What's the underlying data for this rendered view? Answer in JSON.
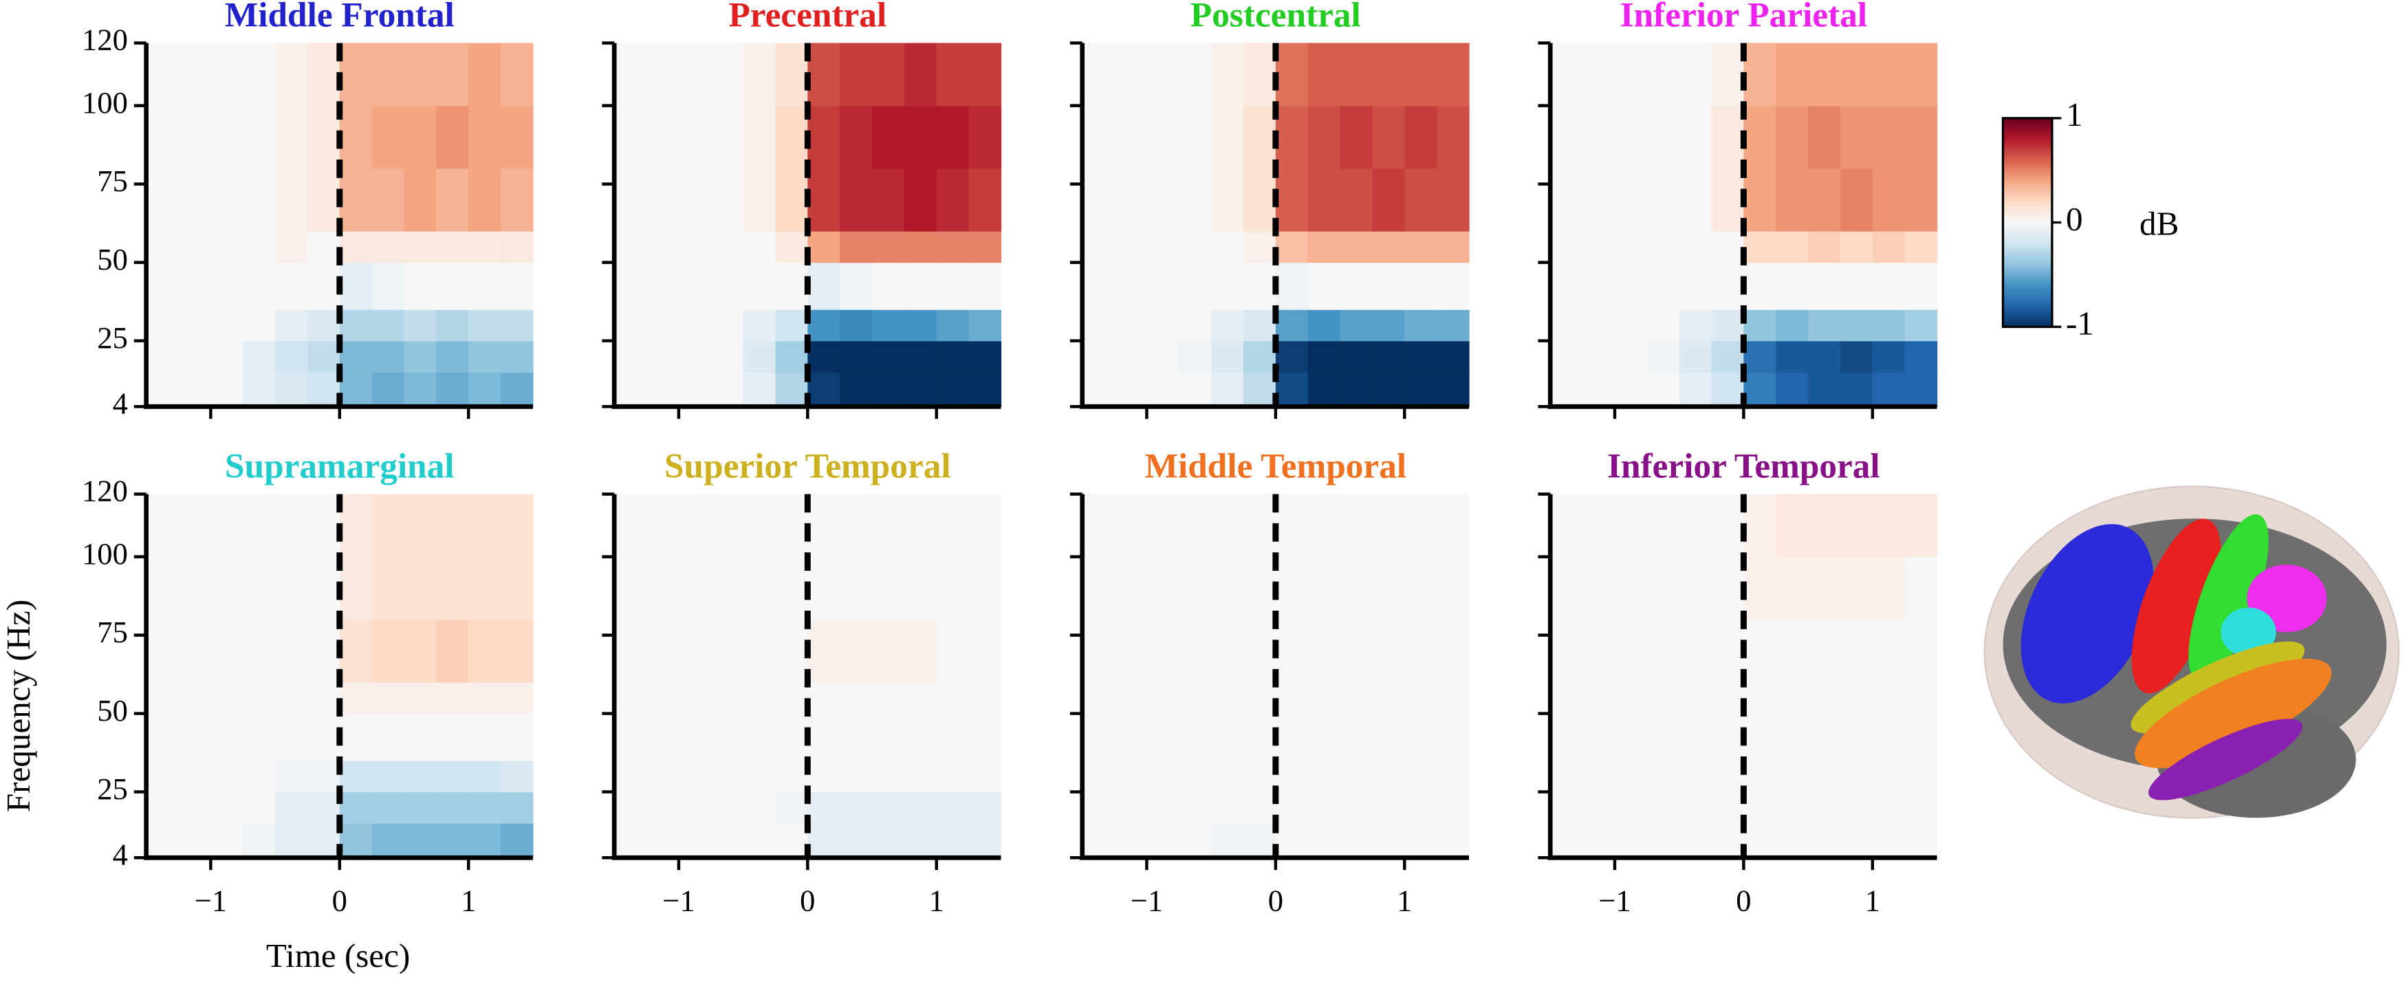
{
  "xlabel": "Time (sec)",
  "ylabel": "Frequency (Hz)",
  "colorbar": {
    "label": "dB",
    "lim": [
      -1,
      1
    ],
    "ticks": [
      1,
      0,
      -1
    ],
    "cmap": "RdBu_r"
  },
  "chart_data": [
    {
      "type": "heatmap",
      "title": "Middle Frontal",
      "title_color": "#2222cc",
      "vline": 0,
      "x": [
        -1.5,
        -1.25,
        -1,
        -0.75,
        -0.5,
        -0.25,
        0,
        0.25,
        0.5,
        0.75,
        1,
        1.25,
        1.5
      ],
      "y": [
        4,
        15,
        25,
        35,
        50,
        60,
        80,
        100,
        120
      ],
      "xlim": [
        -1.5,
        1.5
      ],
      "ylim": [
        4,
        120
      ],
      "xticks": [
        -1,
        0,
        1
      ],
      "yticks": [
        4,
        25,
        50,
        75,
        100,
        120
      ],
      "values": [
        [
          0,
          0,
          0,
          -0.1,
          -0.15,
          -0.2,
          -0.45,
          -0.5,
          -0.45,
          -0.5,
          -0.45,
          -0.5
        ],
        [
          0,
          0,
          0,
          -0.1,
          -0.2,
          -0.25,
          -0.45,
          -0.45,
          -0.4,
          -0.45,
          -0.4,
          -0.4
        ],
        [
          0,
          0,
          0,
          0,
          -0.1,
          -0.15,
          -0.3,
          -0.3,
          -0.25,
          -0.3,
          -0.25,
          -0.25
        ],
        [
          0,
          0,
          0,
          0,
          0,
          0,
          -0.1,
          -0.05,
          0,
          0,
          0,
          0
        ],
        [
          0,
          0,
          0,
          0,
          0.05,
          0,
          0.1,
          0.1,
          0.1,
          0.1,
          0.1,
          0.1
        ],
        [
          0,
          0,
          0,
          0,
          0.05,
          0.1,
          0.35,
          0.35,
          0.4,
          0.35,
          0.4,
          0.35
        ],
        [
          0,
          0,
          0,
          0,
          0.05,
          0.1,
          0.35,
          0.4,
          0.4,
          0.45,
          0.4,
          0.4
        ],
        [
          0,
          0,
          0,
          0,
          0.05,
          0.1,
          0.35,
          0.35,
          0.35,
          0.35,
          0.4,
          0.35
        ]
      ]
    },
    {
      "type": "heatmap",
      "title": "Precentral",
      "title_color": "#e02020",
      "vline": 0,
      "x": [
        -1.5,
        -1.25,
        -1,
        -0.75,
        -0.5,
        -0.25,
        0,
        0.25,
        0.5,
        0.75,
        1,
        1.25,
        1.5
      ],
      "y": [
        4,
        15,
        25,
        35,
        50,
        60,
        80,
        100,
        120
      ],
      "xlim": [
        -1.5,
        1.5
      ],
      "ylim": [
        4,
        120
      ],
      "xticks": [
        -1,
        0,
        1
      ],
      "yticks": [
        4,
        25,
        50,
        75,
        100,
        120
      ],
      "values": [
        [
          0,
          0,
          0,
          0,
          -0.1,
          -0.3,
          -0.95,
          -1,
          -1,
          -1,
          -1,
          -1
        ],
        [
          0,
          0,
          0,
          0,
          -0.15,
          -0.35,
          -1,
          -1,
          -1,
          -1,
          -1,
          -1
        ],
        [
          0,
          0,
          0,
          0,
          -0.1,
          -0.2,
          -0.6,
          -0.65,
          -0.6,
          -0.6,
          -0.55,
          -0.5
        ],
        [
          0,
          0,
          0,
          0,
          0,
          0,
          -0.1,
          -0.05,
          0,
          0,
          0,
          0
        ],
        [
          0,
          0,
          0,
          0,
          0,
          0.1,
          0.4,
          0.5,
          0.5,
          0.5,
          0.5,
          0.5
        ],
        [
          0,
          0,
          0,
          0,
          0.05,
          0.2,
          0.7,
          0.75,
          0.75,
          0.8,
          0.75,
          0.7
        ],
        [
          0,
          0,
          0,
          0,
          0.05,
          0.2,
          0.7,
          0.75,
          0.8,
          0.8,
          0.8,
          0.75
        ],
        [
          0,
          0,
          0,
          0,
          0.05,
          0.15,
          0.65,
          0.7,
          0.7,
          0.75,
          0.7,
          0.7
        ]
      ]
    },
    {
      "type": "heatmap",
      "title": "Postcentral",
      "title_color": "#22cc22",
      "vline": 0,
      "x": [
        -1.5,
        -1.25,
        -1,
        -0.75,
        -0.5,
        -0.25,
        0,
        0.25,
        0.5,
        0.75,
        1,
        1.25,
        1.5
      ],
      "y": [
        4,
        15,
        25,
        35,
        50,
        60,
        80,
        100,
        120
      ],
      "xlim": [
        -1.5,
        1.5
      ],
      "ylim": [
        4,
        120
      ],
      "xticks": [
        -1,
        0,
        1
      ],
      "yticks": [
        4,
        25,
        50,
        75,
        100,
        120
      ],
      "values": [
        [
          0,
          0,
          0,
          0,
          -0.1,
          -0.25,
          -0.9,
          -1,
          -1,
          -1,
          -1,
          -1
        ],
        [
          0,
          0,
          0,
          -0.05,
          -0.15,
          -0.3,
          -0.95,
          -1,
          -1,
          -1,
          -1,
          -1
        ],
        [
          0,
          0,
          0,
          0,
          -0.1,
          -0.15,
          -0.55,
          -0.6,
          -0.55,
          -0.55,
          -0.5,
          -0.5
        ],
        [
          0,
          0,
          0,
          0,
          0,
          0,
          -0.05,
          0,
          0,
          0,
          0,
          0
        ],
        [
          0,
          0,
          0,
          0,
          0,
          0.05,
          0.3,
          0.35,
          0.35,
          0.35,
          0.35,
          0.35
        ],
        [
          0,
          0,
          0,
          0,
          0.05,
          0.15,
          0.6,
          0.65,
          0.65,
          0.7,
          0.65,
          0.65
        ],
        [
          0,
          0,
          0,
          0,
          0.05,
          0.15,
          0.6,
          0.65,
          0.7,
          0.65,
          0.7,
          0.65
        ],
        [
          0,
          0,
          0,
          0,
          0.05,
          0.1,
          0.55,
          0.6,
          0.6,
          0.6,
          0.6,
          0.6
        ]
      ]
    },
    {
      "type": "heatmap",
      "title": "Inferior Parietal",
      "title_color": "#ee22ee",
      "vline": 0,
      "x": [
        -1.5,
        -1.25,
        -1,
        -0.75,
        -0.5,
        -0.25,
        0,
        0.25,
        0.5,
        0.75,
        1,
        1.25,
        1.5
      ],
      "y": [
        4,
        15,
        25,
        35,
        50,
        60,
        80,
        100,
        120
      ],
      "xlim": [
        -1.5,
        1.5
      ],
      "ylim": [
        4,
        120
      ],
      "xticks": [
        -1,
        0,
        1
      ],
      "yticks": [
        4,
        25,
        50,
        75,
        100,
        120
      ],
      "values": [
        [
          0,
          0,
          0,
          0,
          -0.1,
          -0.2,
          -0.7,
          -0.8,
          -0.85,
          -0.85,
          -0.8,
          -0.8
        ],
        [
          0,
          0,
          0,
          -0.05,
          -0.15,
          -0.25,
          -0.75,
          -0.85,
          -0.85,
          -0.9,
          -0.85,
          -0.8
        ],
        [
          0,
          0,
          0,
          0,
          -0.1,
          -0.15,
          -0.4,
          -0.45,
          -0.4,
          -0.4,
          -0.4,
          -0.35
        ],
        [
          0,
          0,
          0,
          0,
          0,
          0,
          0,
          0,
          0,
          0,
          0,
          0
        ],
        [
          0,
          0,
          0,
          0,
          0,
          0,
          0.2,
          0.2,
          0.25,
          0.2,
          0.25,
          0.2
        ],
        [
          0,
          0,
          0,
          0,
          0,
          0.1,
          0.4,
          0.45,
          0.45,
          0.5,
          0.45,
          0.45
        ],
        [
          0,
          0,
          0,
          0,
          0,
          0.1,
          0.4,
          0.45,
          0.5,
          0.45,
          0.45,
          0.45
        ],
        [
          0,
          0,
          0,
          0,
          0,
          0.05,
          0.35,
          0.4,
          0.4,
          0.4,
          0.4,
          0.4
        ]
      ]
    },
    {
      "type": "heatmap",
      "title": "Supramarginal",
      "title_color": "#22cccc",
      "vline": 0,
      "x": [
        -1.5,
        -1.25,
        -1,
        -0.75,
        -0.5,
        -0.25,
        0,
        0.25,
        0.5,
        0.75,
        1,
        1.25,
        1.5
      ],
      "y": [
        4,
        15,
        25,
        35,
        50,
        60,
        80,
        100,
        120
      ],
      "xlim": [
        -1.5,
        1.5
      ],
      "ylim": [
        4,
        120
      ],
      "xticks": [
        {
          "value": -1,
          "label": "−1"
        },
        0,
        1
      ],
      "yticks": [
        4,
        25,
        50,
        75,
        100,
        120
      ],
      "values": [
        [
          0,
          0,
          0,
          -0.05,
          -0.1,
          -0.1,
          -0.4,
          -0.45,
          -0.45,
          -0.45,
          -0.45,
          -0.5
        ],
        [
          0,
          0,
          0,
          0,
          -0.1,
          -0.1,
          -0.35,
          -0.35,
          -0.35,
          -0.35,
          -0.35,
          -0.35
        ],
        [
          0,
          0,
          0,
          0,
          -0.05,
          -0.05,
          -0.2,
          -0.2,
          -0.2,
          -0.2,
          -0.2,
          -0.15
        ],
        [
          0,
          0,
          0,
          0,
          0,
          0,
          0,
          0,
          0,
          0,
          0,
          0
        ],
        [
          0,
          0,
          0,
          0,
          0,
          0,
          0.05,
          0.05,
          0.05,
          0.05,
          0.05,
          0.05
        ],
        [
          0,
          0,
          0,
          0,
          0,
          0,
          0.15,
          0.2,
          0.2,
          0.25,
          0.2,
          0.2
        ],
        [
          0,
          0,
          0,
          0,
          0,
          0,
          0.1,
          0.15,
          0.15,
          0.15,
          0.15,
          0.15
        ],
        [
          0,
          0,
          0,
          0,
          0,
          0,
          0.1,
          0.15,
          0.15,
          0.15,
          0.15,
          0.15
        ]
      ]
    },
    {
      "type": "heatmap",
      "title": "Superior Temporal",
      "title_color": "#ccb020",
      "vline": 0,
      "x": [
        -1.5,
        -1.25,
        -1,
        -0.75,
        -0.5,
        -0.25,
        0,
        0.25,
        0.5,
        0.75,
        1,
        1.25,
        1.5
      ],
      "y": [
        4,
        15,
        25,
        35,
        50,
        60,
        80,
        100,
        120
      ],
      "xlim": [
        -1.5,
        1.5
      ],
      "ylim": [
        4,
        120
      ],
      "xticks": [
        {
          "value": -1,
          "label": "−1"
        },
        0,
        1
      ],
      "yticks": [
        4,
        25,
        50,
        75,
        100,
        120
      ],
      "values": [
        [
          0,
          0,
          0,
          0,
          0,
          0,
          -0.1,
          -0.1,
          -0.1,
          -0.1,
          -0.1,
          -0.1
        ],
        [
          0,
          0,
          0,
          0,
          0,
          -0.05,
          -0.1,
          -0.1,
          -0.1,
          -0.1,
          -0.1,
          -0.1
        ],
        [
          0,
          0,
          0,
          0,
          0,
          0,
          0,
          0,
          0,
          0,
          0,
          0
        ],
        [
          0,
          0,
          0,
          0,
          0,
          0,
          0,
          0,
          0,
          0,
          0,
          0
        ],
        [
          0,
          0,
          0,
          0,
          0,
          0,
          0,
          0,
          0,
          0,
          0,
          0
        ],
        [
          0,
          0,
          0,
          0,
          0,
          0,
          0.05,
          0.05,
          0.05,
          0.05,
          0,
          0
        ],
        [
          0,
          0,
          0,
          0,
          0,
          0,
          0,
          0,
          0,
          0,
          0,
          0
        ],
        [
          0,
          0,
          0,
          0,
          0,
          0,
          0,
          0,
          0,
          0,
          0,
          0
        ]
      ]
    },
    {
      "type": "heatmap",
      "title": "Middle Temporal",
      "title_color": "#f07020",
      "vline": 0,
      "x": [
        -1.5,
        -1.25,
        -1,
        -0.75,
        -0.5,
        -0.25,
        0,
        0.25,
        0.5,
        0.75,
        1,
        1.25,
        1.5
      ],
      "y": [
        4,
        15,
        25,
        35,
        50,
        60,
        80,
        100,
        120
      ],
      "xlim": [
        -1.5,
        1.5
      ],
      "ylim": [
        4,
        120
      ],
      "xticks": [
        {
          "value": -1,
          "label": "−1"
        },
        0,
        1
      ],
      "yticks": [
        4,
        25,
        50,
        75,
        100,
        120
      ],
      "values": [
        [
          0,
          0,
          0,
          0,
          -0.05,
          -0.05,
          0,
          0,
          0,
          0,
          0,
          0
        ],
        [
          0,
          0,
          0,
          0,
          0,
          0,
          0,
          0,
          0,
          0,
          0,
          0
        ],
        [
          0,
          0,
          0,
          0,
          0,
          0,
          0,
          0,
          0,
          0,
          0,
          0
        ],
        [
          0,
          0,
          0,
          0,
          0,
          0,
          0,
          0,
          0,
          0,
          0,
          0
        ],
        [
          0,
          0,
          0,
          0,
          0,
          0,
          0,
          0,
          0,
          0,
          0,
          0
        ],
        [
          0,
          0,
          0,
          0,
          0,
          0,
          0,
          0,
          0,
          0,
          0,
          0
        ],
        [
          0,
          0,
          0,
          0,
          0,
          0,
          0,
          0,
          0,
          0,
          0,
          0
        ],
        [
          0,
          0,
          0,
          0,
          0,
          0,
          0,
          0,
          0,
          0,
          0,
          0
        ]
      ]
    },
    {
      "type": "heatmap",
      "title": "Inferior Temporal",
      "title_color": "#881188",
      "vline": 0,
      "x": [
        -1.5,
        -1.25,
        -1,
        -0.75,
        -0.5,
        -0.25,
        0,
        0.25,
        0.5,
        0.75,
        1,
        1.25,
        1.5
      ],
      "y": [
        4,
        15,
        25,
        35,
        50,
        60,
        80,
        100,
        120
      ],
      "xlim": [
        -1.5,
        1.5
      ],
      "ylim": [
        4,
        120
      ],
      "xticks": [
        {
          "value": -1,
          "label": "−1"
        },
        0,
        1
      ],
      "yticks": [
        4,
        25,
        50,
        75,
        100,
        120
      ],
      "values": [
        [
          0,
          0,
          0,
          0,
          0,
          0,
          0,
          0,
          0,
          0,
          0,
          0
        ],
        [
          0,
          0,
          0,
          0,
          0,
          0,
          0,
          0,
          0,
          0,
          0,
          0
        ],
        [
          0,
          0,
          0,
          0,
          0,
          0,
          0,
          0,
          0,
          0,
          0,
          0
        ],
        [
          0,
          0,
          0,
          0,
          0,
          0,
          0,
          0,
          0,
          0,
          0,
          0
        ],
        [
          0,
          0,
          0,
          0,
          0,
          0,
          0,
          0,
          0,
          0,
          0,
          0
        ],
        [
          0,
          0,
          0,
          0,
          0,
          0,
          0,
          0,
          0,
          0,
          0,
          0
        ],
        [
          0,
          0,
          0,
          0,
          0,
          0,
          0.05,
          0.05,
          0.05,
          0.05,
          0.05,
          0
        ],
        [
          0,
          0,
          0,
          0,
          0,
          0,
          0.05,
          0.1,
          0.1,
          0.1,
          0.1,
          0.1
        ]
      ]
    }
  ]
}
